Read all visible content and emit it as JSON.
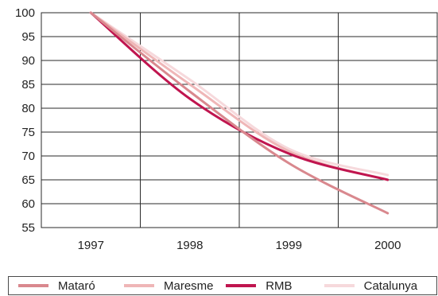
{
  "chart_data": {
    "type": "line",
    "x": [
      "1997",
      "1998",
      "1999",
      "2000"
    ],
    "ylim": [
      55,
      100
    ],
    "yticks": [
      100,
      95,
      90,
      85,
      80,
      75,
      70,
      65,
      60,
      55
    ],
    "grid": true,
    "legend_position": "bottom",
    "series": [
      {
        "name": "Mataró",
        "color": "#d9888e",
        "values": [
          100,
          83.5,
          68.5,
          58
        ]
      },
      {
        "name": "Maresme",
        "color": "#efb6b7",
        "values": [
          100,
          85,
          71,
          65
        ]
      },
      {
        "name": "RMB",
        "color": "#c0154f",
        "values": [
          100,
          82,
          70.5,
          65
        ]
      },
      {
        "name": "Catalunya",
        "color": "#f6d9dc",
        "values": [
          100,
          86,
          71.5,
          66
        ]
      }
    ]
  }
}
